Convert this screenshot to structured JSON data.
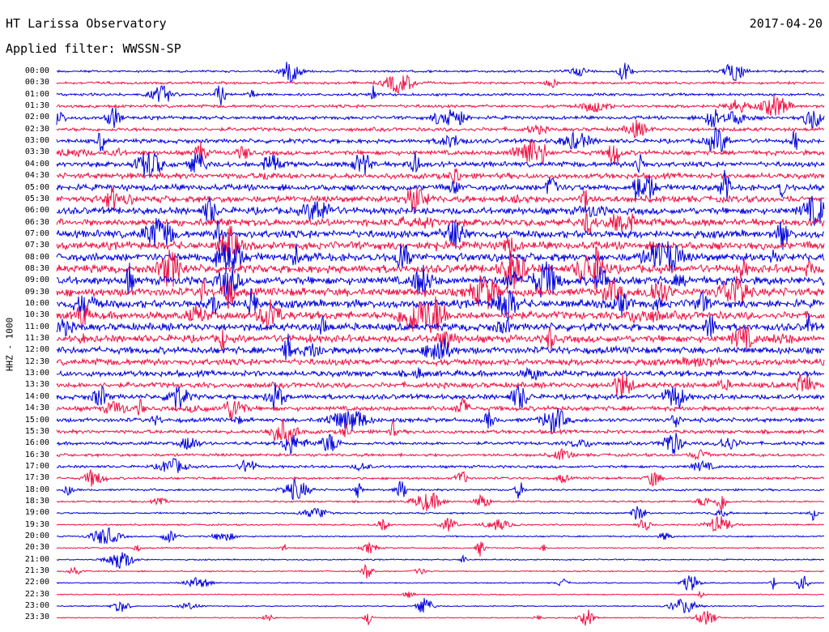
{
  "header": {
    "station": "HT Larissa Observatory",
    "date": "2017-04-20",
    "filter_label": "Applied filter: WWSSN-SP"
  },
  "channel_label": "HHZ - 1000",
  "trace_colors": [
    "#0000dd",
    "#ee1144"
  ],
  "rows": [
    {
      "time": "00:00"
    },
    {
      "time": "00:30"
    },
    {
      "time": "01:00"
    },
    {
      "time": "01:30"
    },
    {
      "time": "02:00"
    },
    {
      "time": "02:30"
    },
    {
      "time": "03:00"
    },
    {
      "time": "03:30"
    },
    {
      "time": "04:00"
    },
    {
      "time": "04:30"
    },
    {
      "time": "05:00"
    },
    {
      "time": "05:30"
    },
    {
      "time": "06:00"
    },
    {
      "time": "06:30"
    },
    {
      "time": "07:00"
    },
    {
      "time": "07:30"
    },
    {
      "time": "08:00"
    },
    {
      "time": "08:30"
    },
    {
      "time": "09:00"
    },
    {
      "time": "09:30"
    },
    {
      "time": "10:00"
    },
    {
      "time": "10:30"
    },
    {
      "time": "11:00"
    },
    {
      "time": "11:30"
    },
    {
      "time": "12:00"
    },
    {
      "time": "12:30"
    },
    {
      "time": "13:00"
    },
    {
      "time": "13:30"
    },
    {
      "time": "14:00"
    },
    {
      "time": "14:30"
    },
    {
      "time": "15:00"
    },
    {
      "time": "15:30"
    },
    {
      "time": "16:00"
    },
    {
      "time": "16:30"
    },
    {
      "time": "17:00"
    },
    {
      "time": "17:30"
    },
    {
      "time": "18:00"
    },
    {
      "time": "18:30"
    },
    {
      "time": "19:00"
    },
    {
      "time": "19:30"
    },
    {
      "time": "20:00"
    },
    {
      "time": "20:30"
    },
    {
      "time": "21:00"
    },
    {
      "time": "21:30"
    },
    {
      "time": "22:00"
    },
    {
      "time": "22:30"
    },
    {
      "time": "23:00"
    },
    {
      "time": "23:30"
    }
  ]
}
